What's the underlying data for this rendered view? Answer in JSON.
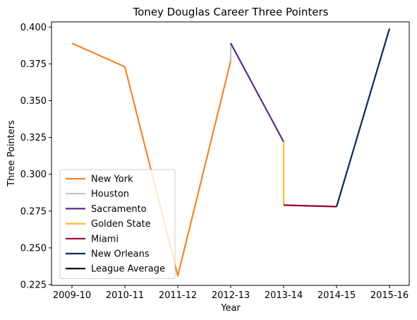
{
  "chart_data": {
    "type": "line",
    "title": "Toney Douglas Career Three Pointers",
    "xlabel": "Year",
    "ylabel": "Three Pointers",
    "categories": [
      "2009-10",
      "2010-11",
      "2011-12",
      "2012-13",
      "2013-14",
      "2014-15",
      "2015-16"
    ],
    "ylim": [
      0.2245,
      0.4035
    ],
    "yticks": [
      0.225,
      0.25,
      0.275,
      0.3,
      0.325,
      0.35,
      0.375,
      0.4
    ],
    "ytick_labels": [
      "0.225",
      "0.250",
      "0.275",
      "0.300",
      "0.325",
      "0.350",
      "0.375",
      "0.400"
    ],
    "grid": false,
    "legend_position": "lower-left",
    "series": [
      {
        "name": "New York",
        "color": "#F58426",
        "points": [
          [
            0,
            0.389
          ],
          [
            1,
            0.373
          ],
          [
            2,
            0.231
          ],
          [
            3,
            0.377
          ]
        ]
      },
      {
        "name": "Houston",
        "color": "#BEC0C2",
        "points": [
          [
            3,
            0.377
          ],
          [
            3,
            0.389
          ]
        ]
      },
      {
        "name": "Sacramento",
        "color": "#5A2D81",
        "points": [
          [
            3,
            0.389
          ],
          [
            4,
            0.322
          ]
        ]
      },
      {
        "name": "Golden State",
        "color": "#FDB927",
        "points": [
          [
            4,
            0.322
          ],
          [
            4,
            0.279
          ]
        ]
      },
      {
        "name": "Miami",
        "color": "#98002E",
        "points": [
          [
            4,
            0.279
          ],
          [
            5,
            0.278
          ]
        ]
      },
      {
        "name": "New Orleans",
        "color": "#002B5C",
        "points": [
          [
            5,
            0.278
          ],
          [
            6,
            0.399
          ]
        ]
      },
      {
        "name": "League Average",
        "color": "#000000",
        "points": []
      }
    ]
  }
}
